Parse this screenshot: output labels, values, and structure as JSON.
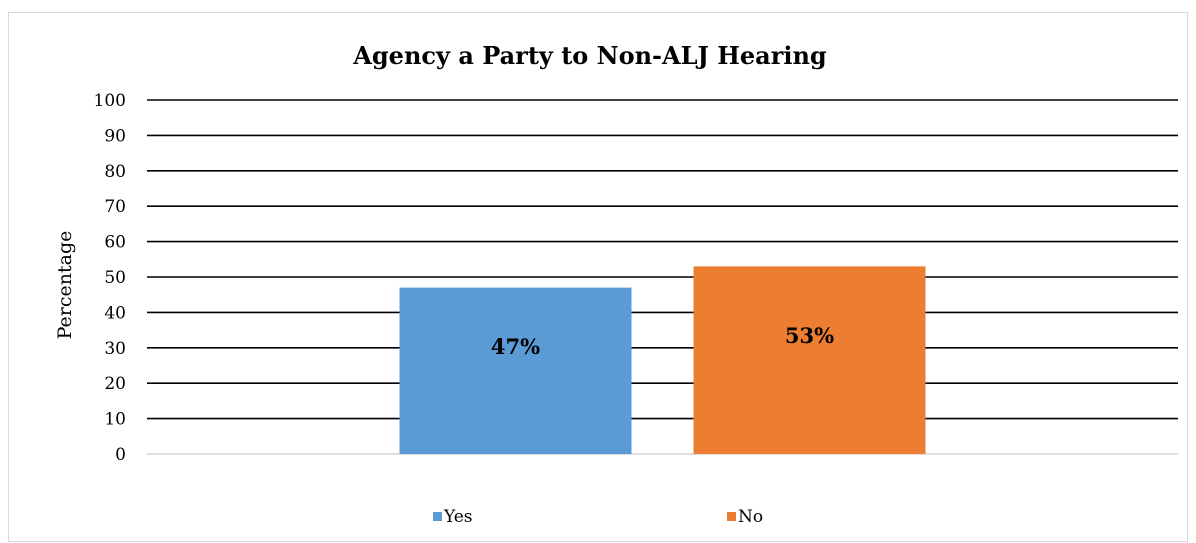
{
  "chart_data": {
    "type": "bar",
    "title": "Agency a Party to Non-ALJ Hearing",
    "xlabel": "",
    "ylabel": "Percentage",
    "ylim": [
      0,
      100
    ],
    "yticks": [
      0,
      10,
      20,
      30,
      40,
      50,
      60,
      70,
      80,
      90,
      100
    ],
    "grid": true,
    "legend": "bottom",
    "series": [
      {
        "name": "Yes",
        "value": 47,
        "label": "47%",
        "color": "#5b9bd5"
      },
      {
        "name": "No",
        "value": 53,
        "label": "53%",
        "color": "#ed7d31"
      }
    ]
  }
}
